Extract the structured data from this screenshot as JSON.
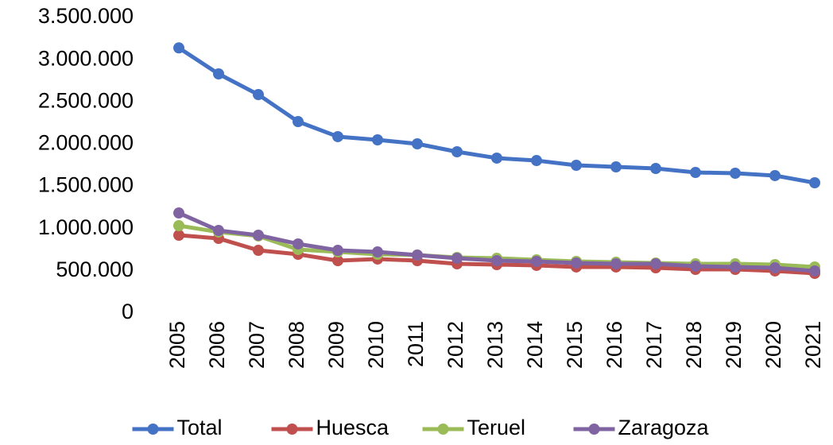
{
  "chart_data": {
    "type": "line",
    "x": [
      "2005",
      "2006",
      "2007",
      "2008",
      "2009",
      "2010",
      "2011",
      "2012",
      "2013",
      "2014",
      "2015",
      "2016",
      "2017",
      "2018",
      "2019",
      "2020",
      "2021"
    ],
    "series": [
      {
        "name": "Total",
        "color": "#4472c4",
        "values": [
          3140000,
          2832000,
          2587000,
          2267000,
          2089000,
          2051000,
          2004000,
          1910000,
          1835000,
          1806000,
          1750000,
          1731000,
          1712000,
          1665000,
          1656000,
          1628000,
          1543000
        ]
      },
      {
        "name": "Huesca",
        "color": "#c0504d",
        "values": [
          922000,
          884000,
          743000,
          696000,
          621000,
          640000,
          621000,
          583000,
          574000,
          565000,
          546000,
          546000,
          536000,
          517000,
          517000,
          499000,
          470000
        ]
      },
      {
        "name": "Teruel",
        "color": "#9bbb59",
        "values": [
          1035000,
          960000,
          913000,
          753000,
          724000,
          696000,
          687000,
          659000,
          649000,
          630000,
          612000,
          602000,
          593000,
          583000,
          583000,
          574000,
          546000
        ]
      },
      {
        "name": "Zaragoza",
        "color": "#8064a2",
        "values": [
          1185000,
          978000,
          922000,
          819000,
          743000,
          724000,
          687000,
          649000,
          621000,
          612000,
          593000,
          583000,
          583000,
          555000,
          546000,
          536000,
          499000
        ]
      }
    ],
    "ylim": [
      0,
      3500000
    ],
    "yticks": [
      0,
      {
        "value": 500000,
        "label": "500.000"
      },
      {
        "value": 1000000,
        "label": "1.000.000"
      },
      {
        "value": 1500000,
        "label": "1.500.000"
      },
      {
        "value": 2000000,
        "label": "2.000.000"
      },
      {
        "value": 2500000,
        "label": "2.500.000"
      },
      {
        "value": 3000000,
        "label": "3.000.000"
      },
      {
        "value": 3500000,
        "label": "3.500.000"
      }
    ],
    "grid": false,
    "legend": "bottom"
  }
}
